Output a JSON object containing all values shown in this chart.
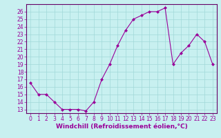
{
  "x": [
    0,
    1,
    2,
    3,
    4,
    5,
    6,
    7,
    8,
    9,
    10,
    11,
    12,
    13,
    14,
    15,
    16,
    17,
    18,
    19,
    20,
    21,
    22,
    23
  ],
  "y": [
    16.5,
    15.0,
    15.0,
    14.0,
    13.0,
    13.0,
    13.0,
    12.8,
    14.0,
    17.0,
    19.0,
    21.5,
    23.5,
    25.0,
    25.5,
    26.0,
    26.0,
    26.5,
    19.0,
    20.5,
    21.5,
    23.0,
    22.0,
    19.0
  ],
  "line_color": "#990099",
  "marker": "D",
  "marker_size": 2,
  "background_color": "#c8f0f0",
  "grid_color": "#a0d8d8",
  "xlabel": "Windchill (Refroidissement éolien,°C)",
  "xlabel_fontsize": 6.5,
  "ylim": [
    12.5,
    27
  ],
  "xlim": [
    -0.5,
    23.5
  ],
  "yticks": [
    13,
    14,
    15,
    16,
    17,
    18,
    19,
    20,
    21,
    22,
    23,
    24,
    25,
    26
  ],
  "xticks": [
    0,
    1,
    2,
    3,
    4,
    5,
    6,
    7,
    8,
    9,
    10,
    11,
    12,
    13,
    14,
    15,
    16,
    17,
    18,
    19,
    20,
    21,
    22,
    23
  ],
  "tick_fontsize": 5.5,
  "spine_color": "#660066",
  "linewidth": 0.8
}
